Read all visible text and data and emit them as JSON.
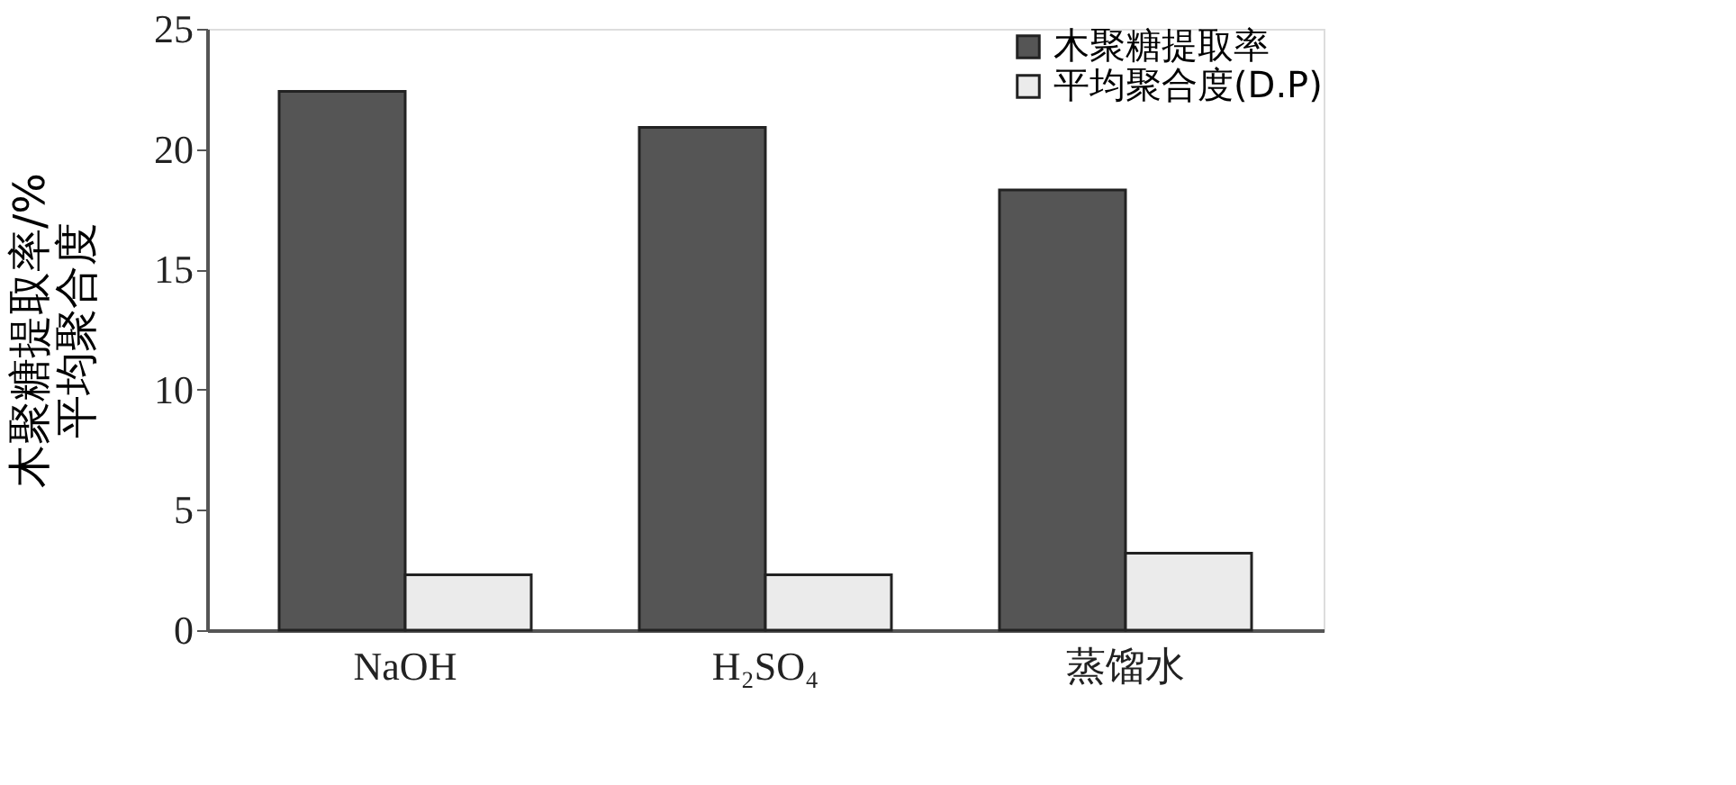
{
  "chart_data": {
    "type": "bar",
    "ylabel": "木聚糖提取率/%\n平均聚合度",
    "categories": [
      "NaOH",
      "H₂SO₄",
      "蒸馏水"
    ],
    "series": [
      {
        "name": "木聚糖提取率",
        "color": "#555555",
        "values": [
          22.4,
          20.9,
          18.3
        ]
      },
      {
        "name": "平均聚合度(D.P)",
        "color": "#ebebeb",
        "values": [
          2.3,
          2.3,
          3.2
        ]
      }
    ],
    "ylim": [
      0,
      25
    ],
    "yticks": [
      0,
      5,
      10,
      15,
      20,
      25
    ],
    "grid": false,
    "legend": "top right"
  }
}
